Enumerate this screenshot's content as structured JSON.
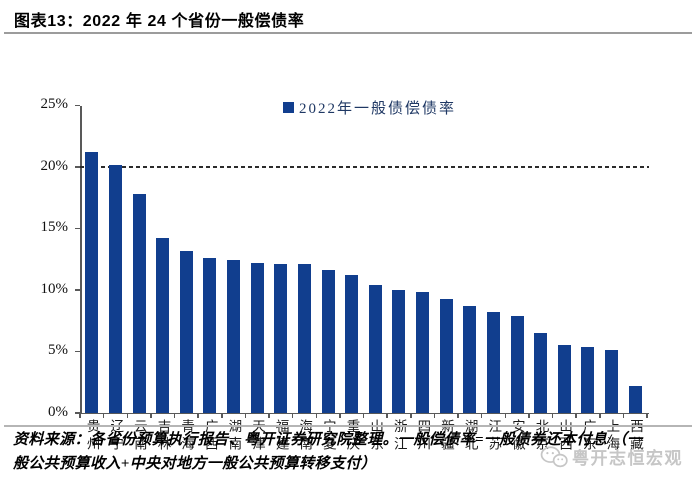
{
  "header": {
    "title": "图表13：2022 年 24 个省份一般偿债率"
  },
  "chart_data": {
    "type": "bar",
    "title": "图表13：2022 年 24 个省份一般偿债率",
    "legend": "2022年一般债偿债率",
    "legend_position": "top-center",
    "categories": [
      "贵州",
      "辽宁",
      "云南",
      "吉林",
      "青海",
      "广西",
      "湖南",
      "天津",
      "福建",
      "海南",
      "宁夏",
      "重庆",
      "山东",
      "浙江",
      "四川",
      "新疆",
      "湖北",
      "江苏",
      "安徽",
      "北京",
      "山西",
      "广东",
      "上海",
      "西藏"
    ],
    "values": [
      21.2,
      20.2,
      17.8,
      14.2,
      13.2,
      12.6,
      12.4,
      12.2,
      12.1,
      12.1,
      11.6,
      11.2,
      10.4,
      10.0,
      9.8,
      9.3,
      8.7,
      8.2,
      7.9,
      6.5,
      5.5,
      5.4,
      5.1,
      2.2
    ],
    "unit": "%",
    "ylim": [
      0,
      25
    ],
    "ytick_step": 5,
    "ytick_labels": [
      "0%",
      "5%",
      "10%",
      "15%",
      "20%",
      "25%"
    ],
    "reference_line": {
      "y": 20,
      "style": "dashed",
      "color": "#2b2b2b"
    },
    "grid": false,
    "colors": {
      "bar": "#113E8E",
      "legend_text": "#1F3864",
      "axis": "#595959"
    }
  },
  "footer": {
    "source_line1": "资料来源：各省份预算执行报告、粤开证券研究院整理。一般偿债率=一般债券还本付息/（一",
    "source_line2": "般公共预算收入+中央对地方一般公共预算转移支付）",
    "watermark": "粤开志恒宏观"
  }
}
